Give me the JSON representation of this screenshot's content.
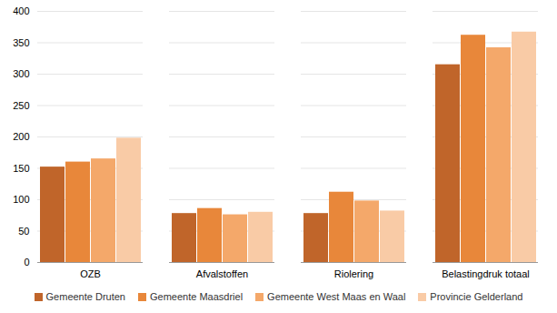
{
  "chart_data": {
    "type": "bar",
    "categories": [
      "OZB",
      "Afvalstoffen",
      "Riolering",
      "Belastingdruk totaal"
    ],
    "series": [
      {
        "name": "Gemeente Druten",
        "color": "#c0652a",
        "values": [
          152,
          78,
          78,
          315
        ]
      },
      {
        "name": "Gemeente Maasdriel",
        "color": "#e8873a",
        "values": [
          160,
          86,
          112,
          362
        ]
      },
      {
        "name": "Gemeente West Maas en Waal",
        "color": "#f4a86a",
        "values": [
          165,
          76,
          98,
          342
        ]
      },
      {
        "name": "Provincie Gelderland",
        "color": "#f9cba6",
        "values": [
          198,
          80,
          82,
          367
        ]
      }
    ],
    "ylim": [
      0,
      400
    ],
    "yticks": [
      0,
      50,
      100,
      150,
      200,
      250,
      300,
      350,
      400
    ],
    "grid": true,
    "legend": "bottom"
  }
}
